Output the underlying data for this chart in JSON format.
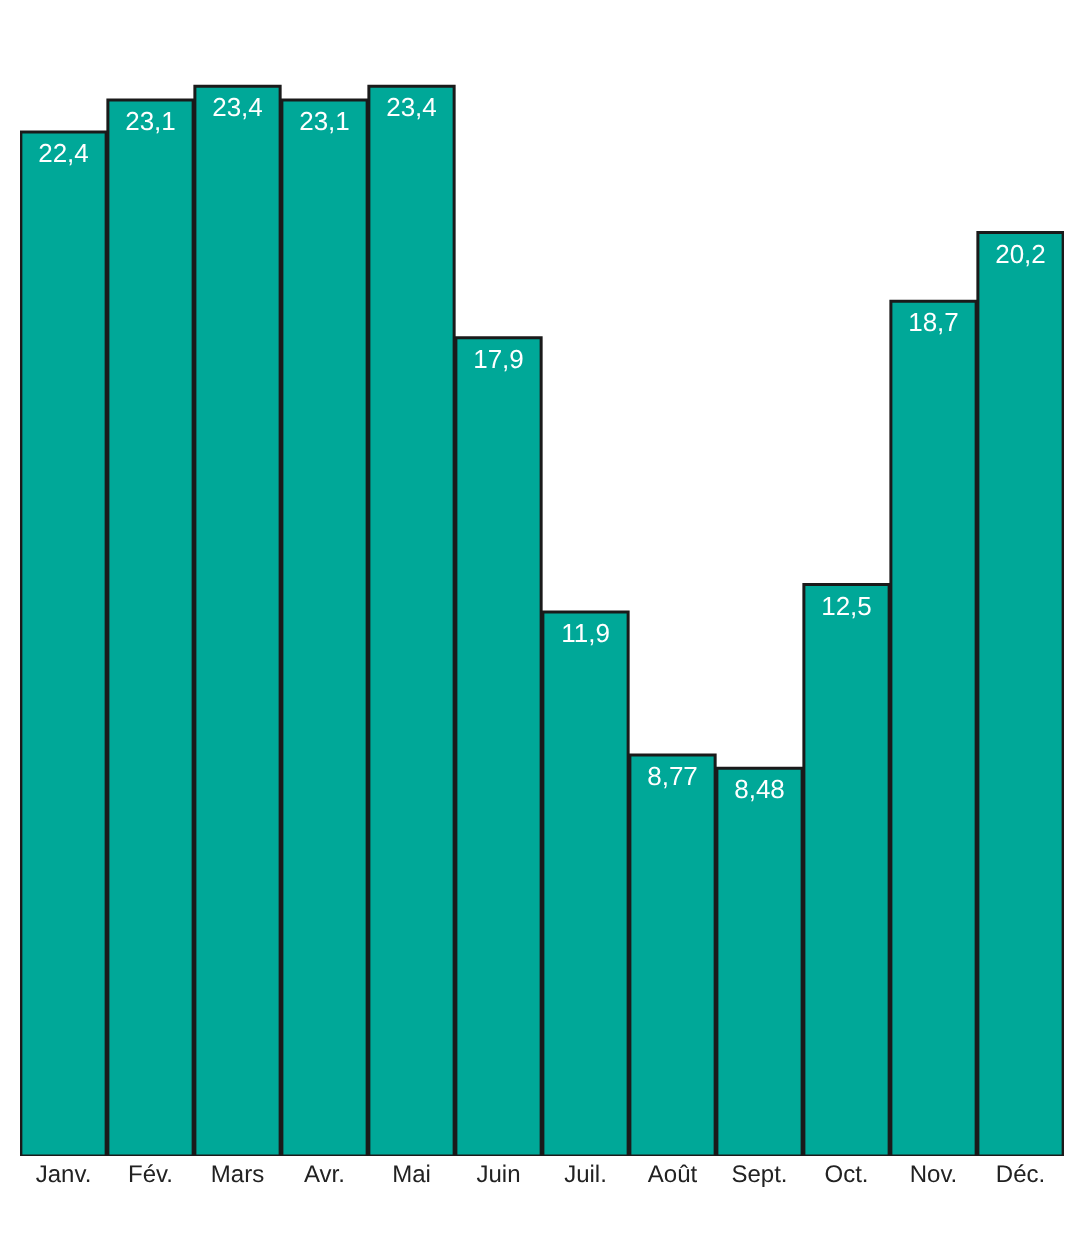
{
  "chart_data": {
    "type": "bar",
    "categories": [
      "Janv.",
      "Fév.",
      "Mars",
      "Avr.",
      "Mai",
      "Juin",
      "Juil.",
      "Août",
      "Sept.",
      "Oct.",
      "Nov.",
      "Déc."
    ],
    "values": [
      22.4,
      23.1,
      23.4,
      23.1,
      23.4,
      17.9,
      11.9,
      8.77,
      8.48,
      12.5,
      18.7,
      20.2
    ],
    "value_labels": [
      "22,4",
      "23,1",
      "23,4",
      "23,1",
      "23,4",
      "17,9",
      "11,9",
      "8,77",
      "8,48",
      "12,5",
      "18,7",
      "20,2"
    ],
    "color": "#00a898"
  }
}
